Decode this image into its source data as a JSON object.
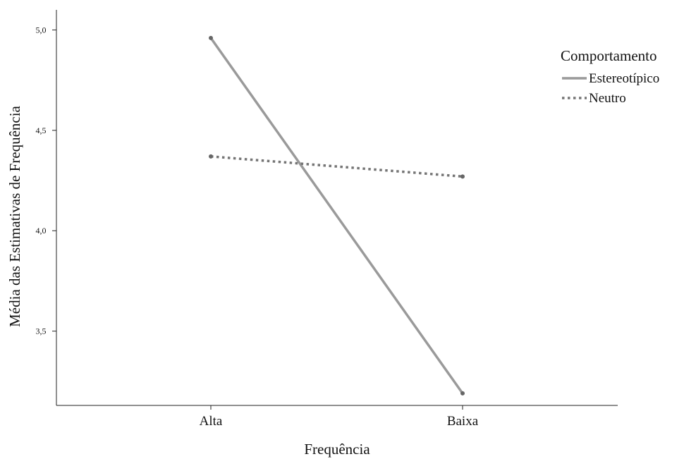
{
  "chart_data": {
    "type": "line",
    "title": "",
    "xlabel": "Frequência",
    "ylabel": "Média das Estimativas de Frequência",
    "categories": [
      "Alta",
      "Baixa"
    ],
    "y_ticks": [
      "3,5",
      "4,0",
      "4,5",
      "5,0"
    ],
    "y_tick_values": [
      3.5,
      4.0,
      4.5,
      5.0
    ],
    "ylim": [
      3.13,
      5.1
    ],
    "grid": false,
    "legend": {
      "title": "Comportamento",
      "placement": "top-right"
    },
    "series": [
      {
        "name": "Estereotípico",
        "values": [
          4.96,
          3.19
        ],
        "style": "solid",
        "color": "#9a9a9a"
      },
      {
        "name": "Neutro",
        "values": [
          4.37,
          4.27
        ],
        "style": "dotted",
        "color": "#757575"
      }
    ]
  }
}
